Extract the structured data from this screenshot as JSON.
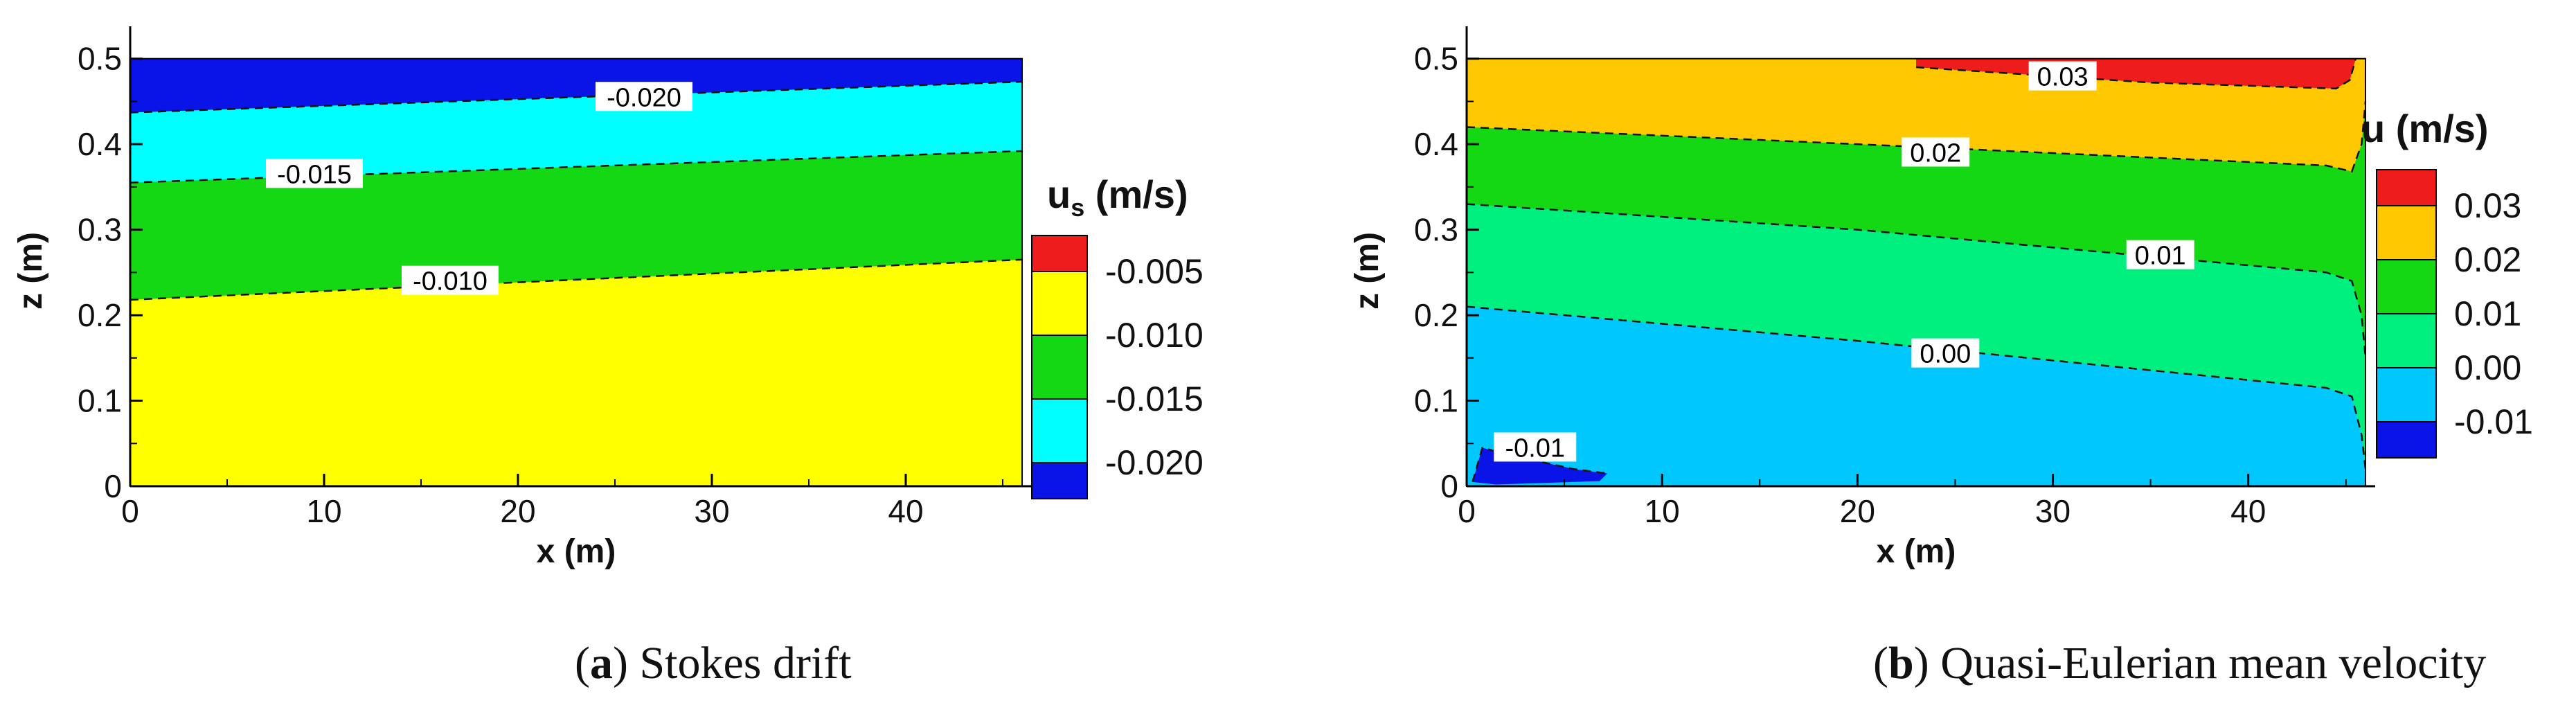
{
  "chart_data": [
    {
      "type": "contour",
      "panel_letter": "a",
      "caption": "Stokes drift",
      "xlabel": "x (m)",
      "ylabel": "z (m)",
      "legend_title_main": "u",
      "legend_title_sub": "s",
      "legend_title_unit": "(m/s)",
      "xlim": [
        0,
        46
      ],
      "ylim": [
        0,
        0.52
      ],
      "x_ticks": [
        0,
        10,
        20,
        30,
        40
      ],
      "x_tick_labels": [
        "0",
        "10",
        "20",
        "30",
        "40"
      ],
      "y_ticks": [
        0,
        0.1,
        0.2,
        0.3,
        0.4,
        0.5
      ],
      "y_tick_labels": [
        "0",
        "0.1",
        "0.2",
        "0.3",
        "0.4",
        "0.5"
      ],
      "legend_levels": [
        "-0.005",
        "-0.010",
        "-0.015",
        "-0.020"
      ],
      "legend_colors": [
        "#ee1c1c",
        "#ffff00",
        "#13d813",
        "#00ffff",
        "#0a14e6"
      ],
      "bands": [
        {
          "color": "#ffff00",
          "value_range": "> -0.010",
          "top": [
            [
              0,
              0.218
            ],
            [
              46,
              0.265
            ]
          ]
        },
        {
          "color": "#13d813",
          "value_range": "-0.015 to -0.010",
          "top": [
            [
              0,
              0.355
            ],
            [
              46,
              0.392
            ]
          ]
        },
        {
          "color": "#00ffff",
          "value_range": "-0.020 to -0.015",
          "top": [
            [
              0,
              0.437
            ],
            [
              46,
              0.473
            ]
          ]
        },
        {
          "color": "#0a14e6",
          "value_range": "< -0.020",
          "top": [
            [
              0,
              0.5
            ],
            [
              46,
              0.5
            ]
          ]
        }
      ],
      "contours": [
        {
          "value": -0.01,
          "label": "-0.010",
          "points": [
            [
              0,
              0.218
            ],
            [
              46,
              0.265
            ]
          ],
          "label_at": [
            16.5,
            0.24
          ]
        },
        {
          "value": -0.015,
          "label": "-0.015",
          "points": [
            [
              0,
              0.355
            ],
            [
              46,
              0.392
            ]
          ],
          "label_at": [
            9.5,
            0.365
          ]
        },
        {
          "value": -0.02,
          "label": "-0.020",
          "points": [
            [
              0,
              0.437
            ],
            [
              46,
              0.473
            ]
          ],
          "label_at": [
            26.5,
            0.455
          ]
        }
      ]
    },
    {
      "type": "contour",
      "panel_letter": "b",
      "caption": "Quasi-Eulerian mean velocity",
      "xlabel": "x (m)",
      "ylabel": "z (m)",
      "legend_title_main": "u",
      "legend_title_sub": "",
      "legend_title_unit": "(m/s)",
      "xlim": [
        0,
        46
      ],
      "ylim": [
        0,
        0.52
      ],
      "x_ticks": [
        0,
        10,
        20,
        30,
        40
      ],
      "x_tick_labels": [
        "0",
        "10",
        "20",
        "30",
        "40"
      ],
      "y_ticks": [
        0,
        0.1,
        0.2,
        0.3,
        0.4,
        0.5
      ],
      "y_tick_labels": [
        "0",
        "0.1",
        "0.2",
        "0.3",
        "0.4",
        "0.5"
      ],
      "legend_levels": [
        "0.03",
        "0.02",
        "0.01",
        "0.00",
        "-0.01"
      ],
      "legend_colors": [
        "#ee1c1c",
        "#ffc800",
        "#13d813",
        "#00f080",
        "#00c8ff",
        "#0a14e6"
      ],
      "bands": [
        {
          "color": "#00c8ff",
          "value_range": "-0.01 to 0.00",
          "top": [
            [
              0,
              0.21
            ],
            [
              20,
              0.17
            ],
            [
              44,
              0.115
            ],
            [
              45.3,
              0.105
            ],
            [
              45.8,
              0.06
            ],
            [
              46,
              0.02
            ]
          ]
        },
        {
          "color": "#00f080",
          "value_range": "0.00 to 0.01",
          "top": [
            [
              0,
              0.33
            ],
            [
              20,
              0.3
            ],
            [
              44,
              0.25
            ],
            [
              45.3,
              0.24
            ],
            [
              45.8,
              0.2
            ],
            [
              46,
              0.15
            ]
          ]
        },
        {
          "color": "#13d813",
          "value_range": "0.01 to 0.02",
          "top": [
            [
              0,
              0.42
            ],
            [
              20,
              0.4
            ],
            [
              44,
              0.375
            ],
            [
              45.3,
              0.368
            ],
            [
              45.8,
              0.4
            ],
            [
              46,
              0.45
            ]
          ]
        },
        {
          "color": "#ffc800",
          "value_range": "0.02 to 0.03",
          "top": [
            [
              0,
              0.5
            ],
            [
              46,
              0.5
            ]
          ]
        }
      ],
      "red_region": {
        "value_range": "> 0.03",
        "points": [
          [
            23,
            0.5
          ],
          [
            45.5,
            0.5
          ],
          [
            45.2,
            0.475
          ],
          [
            44.5,
            0.465
          ],
          [
            35,
            0.472
          ],
          [
            23,
            0.49
          ]
        ]
      },
      "dark_blob": {
        "value_range": "< -0.01",
        "points": [
          [
            0.3,
            0.005
          ],
          [
            0.8,
            0.045
          ],
          [
            2.5,
            0.035
          ],
          [
            5.5,
            0.02
          ],
          [
            7.2,
            0.015
          ],
          [
            6.8,
            0.006
          ],
          [
            1.5,
            0.002
          ]
        ]
      },
      "contours": [
        {
          "value": 0.03,
          "label": "0.03",
          "points": [
            [
              23,
              0.49
            ],
            [
              35,
              0.472
            ],
            [
              44.5,
              0.465
            ],
            [
              45.2,
              0.475
            ],
            [
              45.5,
              0.5
            ]
          ],
          "label_at": [
            30.5,
            0.479
          ]
        },
        {
          "value": 0.02,
          "label": "0.02",
          "points": [
            [
              0,
              0.42
            ],
            [
              20,
              0.4
            ],
            [
              44,
              0.375
            ],
            [
              45.3,
              0.368
            ],
            [
              45.8,
              0.4
            ],
            [
              46,
              0.45
            ]
          ],
          "label_at": [
            24,
            0.39
          ]
        },
        {
          "value": 0.01,
          "label": "0.01",
          "points": [
            [
              0,
              0.33
            ],
            [
              20,
              0.3
            ],
            [
              44,
              0.25
            ],
            [
              45.3,
              0.24
            ],
            [
              45.8,
              0.2
            ],
            [
              46,
              0.15
            ]
          ],
          "label_at": [
            35.5,
            0.27
          ]
        },
        {
          "value": 0.0,
          "label": "0.00",
          "points": [
            [
              0,
              0.21
            ],
            [
              20,
              0.17
            ],
            [
              44,
              0.115
            ],
            [
              45.3,
              0.105
            ],
            [
              45.8,
              0.06
            ],
            [
              46,
              0.02
            ]
          ],
          "label_at": [
            24.5,
            0.155
          ]
        },
        {
          "value": -0.01,
          "label": "-0.01",
          "points": [
            [
              0.3,
              0.005
            ],
            [
              0.8,
              0.045
            ],
            [
              2.5,
              0.035
            ],
            [
              5.5,
              0.02
            ],
            [
              7.2,
              0.015
            ]
          ],
          "label_at": [
            3.5,
            0.045
          ]
        }
      ]
    }
  ]
}
